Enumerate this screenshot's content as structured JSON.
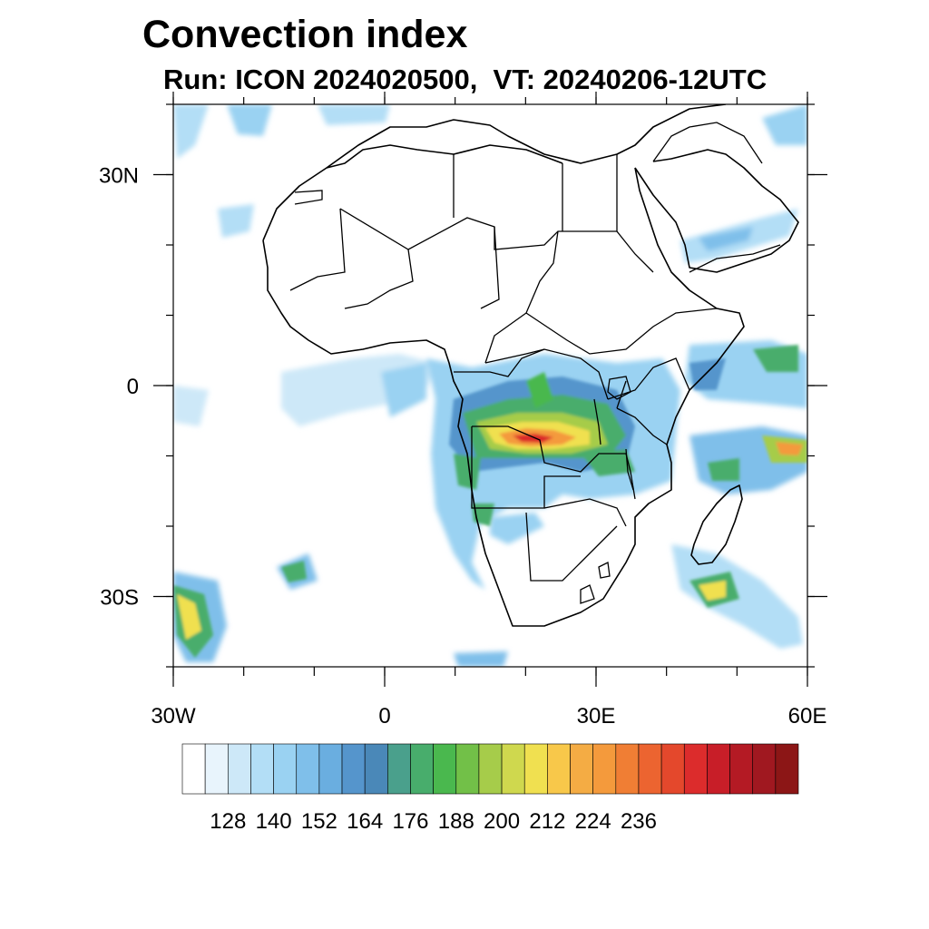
{
  "title": "Convection index",
  "subtitle": "Run: ICON 2024020500,  VT: 20240206-12UTC",
  "map": {
    "lon_range": [
      -30,
      60
    ],
    "lat_range": [
      -40,
      40
    ],
    "lon_ticks": [
      {
        "value": -30,
        "label": "30W"
      },
      {
        "value": 0,
        "label": "0"
      },
      {
        "value": 30,
        "label": "30E"
      },
      {
        "value": 60,
        "label": "60E"
      }
    ],
    "lat_ticks": [
      {
        "value": 30,
        "label": "30N"
      },
      {
        "value": 0,
        "label": "0"
      },
      {
        "value": -30,
        "label": "30S"
      }
    ],
    "minor_lon_step": 10,
    "minor_lat_step": 10
  },
  "colorbar": {
    "colors": [
      "#ffffff",
      "#e8f4fc",
      "#cde8f8",
      "#b3def6",
      "#9ad2f2",
      "#7fbfea",
      "#6aaee0",
      "#5595cc",
      "#4a88b8",
      "#4aa08c",
      "#48ad6c",
      "#4ab84e",
      "#72c048",
      "#a6cc4a",
      "#cfd84e",
      "#f0e050",
      "#f8c84a",
      "#f4ac44",
      "#f49a3c",
      "#f07e34",
      "#ec6430",
      "#e4482c",
      "#dc2c2c",
      "#c81e28",
      "#b41a24",
      "#a01820",
      "#8c1616"
    ],
    "labels": [
      "128",
      "140",
      "152",
      "164",
      "176",
      "188",
      "200",
      "212",
      "224",
      "236"
    ]
  }
}
